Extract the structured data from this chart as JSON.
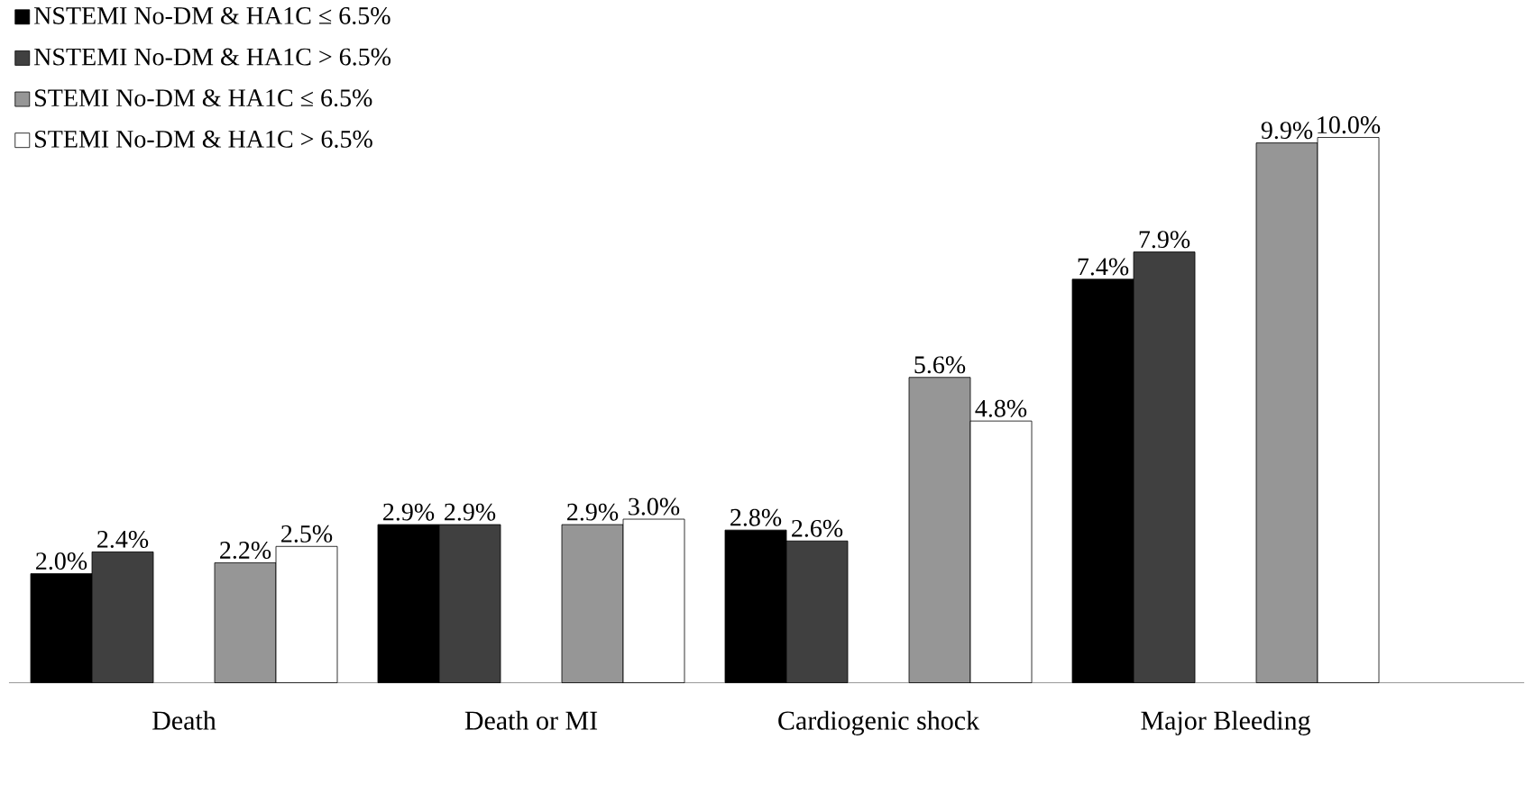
{
  "chart_data": {
    "type": "bar",
    "categories": [
      "Death",
      "Death or MI",
      "Cardiogenic shock",
      "Major Bleeding"
    ],
    "series": [
      {
        "name": "NSTEMI No-DM & HA1C ≤ 6.5%",
        "color": "#000000",
        "values": [
          2.0,
          2.9,
          2.8,
          7.4
        ],
        "value_labels": [
          "2.0%",
          "2.9%",
          "2.8%",
          "7.4%"
        ]
      },
      {
        "name": "NSTEMI No-DM & HA1C > 6.5%",
        "color": "#404040",
        "values": [
          2.4,
          2.9,
          2.6,
          7.9
        ],
        "value_labels": [
          "2.4%",
          "2.9%",
          "2.6%",
          "7.9%"
        ]
      },
      {
        "name": "STEMI No-DM & HA1C ≤ 6.5%",
        "color": "#969696",
        "values": [
          2.2,
          2.9,
          5.6,
          9.9
        ],
        "value_labels": [
          "2.2%",
          "2.9%",
          "5.6%",
          "9.9%"
        ]
      },
      {
        "name": "STEMI No-DM & HA1C > 6.5%",
        "color": "#ffffff",
        "values": [
          2.5,
          3.0,
          4.8,
          10.0
        ],
        "value_labels": [
          "2.5%",
          "3.0%",
          "4.8%",
          "10.0%"
        ]
      }
    ],
    "legend": "top left"
  }
}
